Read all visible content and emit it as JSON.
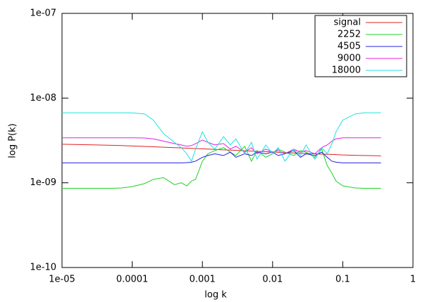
{
  "chart_data": {
    "type": "line",
    "xlabel": "log k",
    "ylabel": "log P(k)",
    "xscale": "log",
    "yscale": "log",
    "xlim": [
      1e-05,
      1
    ],
    "ylim": [
      1e-10,
      1e-07
    ],
    "xticks": [
      {
        "value": 1e-05,
        "label": "1e-05"
      },
      0.0001,
      0.001,
      0.01,
      0.1,
      1
    ],
    "yticks": [
      {
        "value": 1e-10,
        "label": "1e-10"
      },
      {
        "value": 1e-09,
        "label": "1e-09"
      },
      {
        "value": 1e-08,
        "label": "1e-08"
      },
      {
        "value": 1e-07,
        "label": "1e-07"
      }
    ],
    "legend": "top-right",
    "x": [
      1e-05,
      2e-05,
      3e-05,
      5e-05,
      7e-05,
      0.0001,
      0.00015,
      0.0002,
      0.00028,
      0.0004,
      0.0005,
      0.0006,
      0.0007,
      0.0008,
      0.001,
      0.0012,
      0.0015,
      0.002,
      0.0025,
      0.003,
      0.004,
      0.005,
      0.006,
      0.008,
      0.01,
      0.012,
      0.015,
      0.02,
      0.025,
      0.03,
      0.04,
      0.05,
      0.06,
      0.07,
      0.08,
      0.1,
      0.15,
      0.2,
      0.35
    ],
    "series": [
      {
        "name": "signal",
        "color": "#e02020",
        "values": [
          2.85e-09,
          2.82e-09,
          2.8e-09,
          2.77e-09,
          2.75e-09,
          2.72e-09,
          2.69e-09,
          2.66e-09,
          2.63e-09,
          2.6e-09,
          2.58e-09,
          2.56e-09,
          2.55e-09,
          2.54e-09,
          2.52e-09,
          2.5e-09,
          2.48e-09,
          2.45e-09,
          2.43e-09,
          2.42e-09,
          2.39e-09,
          2.37e-09,
          2.35e-09,
          2.33e-09,
          2.31e-09,
          2.29e-09,
          2.27e-09,
          2.25e-09,
          2.23e-09,
          2.22e-09,
          2.2e-09,
          2.18e-09,
          2.17e-09,
          2.16e-09,
          2.15e-09,
          2.13e-09,
          2.11e-09,
          2.1e-09,
          2.08e-09
        ]
      },
      {
        "name": "2252",
        "color": "#20d020",
        "values": [
          8.6e-10,
          8.6e-10,
          8.6e-10,
          8.6e-10,
          8.7e-10,
          9e-10,
          9.8e-10,
          1.1e-09,
          1.15e-09,
          9.5e-10,
          1e-09,
          9.2e-10,
          1.05e-09,
          1.1e-09,
          1.8e-09,
          2.2e-09,
          2.4e-09,
          2.6e-09,
          2.3e-09,
          2.1e-09,
          2.7e-09,
          1.8e-09,
          2.4e-09,
          2e-09,
          2.2e-09,
          2.5e-09,
          2.3e-09,
          2.1e-09,
          2.4e-09,
          2.3e-09,
          2e-09,
          2.5e-09,
          1.6e-09,
          1.3e-09,
          1.05e-09,
          9.2e-10,
          8.7e-10,
          8.6e-10,
          8.6e-10
        ]
      },
      {
        "name": "4505",
        "color": "#2020e0",
        "values": [
          1.72e-09,
          1.72e-09,
          1.72e-09,
          1.72e-09,
          1.72e-09,
          1.72e-09,
          1.72e-09,
          1.72e-09,
          1.72e-09,
          1.72e-09,
          1.72e-09,
          1.73e-09,
          1.75e-09,
          1.8e-09,
          2e-09,
          2.1e-09,
          2.2e-09,
          2.1e-09,
          2.3e-09,
          2e-09,
          2.2e-09,
          2.1e-09,
          2.3e-09,
          2.2e-09,
          2.3e-09,
          2.1e-09,
          2.2e-09,
          2.4e-09,
          2e-09,
          2.2e-09,
          2.1e-09,
          2.3e-09,
          2e-09,
          1.8e-09,
          1.75e-09,
          1.72e-09,
          1.72e-09,
          1.72e-09,
          1.72e-09
        ]
      },
      {
        "name": "9000",
        "color": "#e020e0",
        "values": [
          3.4e-09,
          3.4e-09,
          3.4e-09,
          3.4e-09,
          3.4e-09,
          3.4e-09,
          3.38e-09,
          3.3e-09,
          3.1e-09,
          2.9e-09,
          2.8e-09,
          2.7e-09,
          2.75e-09,
          2.9e-09,
          3.2e-09,
          3e-09,
          2.8e-09,
          2.9e-09,
          2.5e-09,
          2.7e-09,
          2.3e-09,
          2.6e-09,
          2.2e-09,
          2.5e-09,
          2.3e-09,
          2.4e-09,
          2.2e-09,
          2.5e-09,
          2.3e-09,
          2.4e-09,
          2.2e-09,
          2.6e-09,
          2.8e-09,
          3.1e-09,
          3.3e-09,
          3.4e-09,
          3.4e-09,
          3.4e-09,
          3.4e-09
        ]
      },
      {
        "name": "18000",
        "color": "#20e0e0",
        "values": [
          6.7e-09,
          6.7e-09,
          6.7e-09,
          6.7e-09,
          6.7e-09,
          6.68e-09,
          6.5e-09,
          5.5e-09,
          3.8e-09,
          3e-09,
          2.6e-09,
          2.2e-09,
          1.8e-09,
          2.5e-09,
          4e-09,
          3e-09,
          2.5e-09,
          3.5e-09,
          2.8e-09,
          3.3e-09,
          2.2e-09,
          3e-09,
          1.9e-09,
          2.8e-09,
          2.2e-09,
          2.6e-09,
          1.8e-09,
          2.5e-09,
          2.1e-09,
          2.8e-09,
          1.9e-09,
          2.6e-09,
          2.2e-09,
          2.9e-09,
          4e-09,
          5.5e-09,
          6.5e-09,
          6.7e-09,
          6.7e-09
        ]
      }
    ]
  }
}
